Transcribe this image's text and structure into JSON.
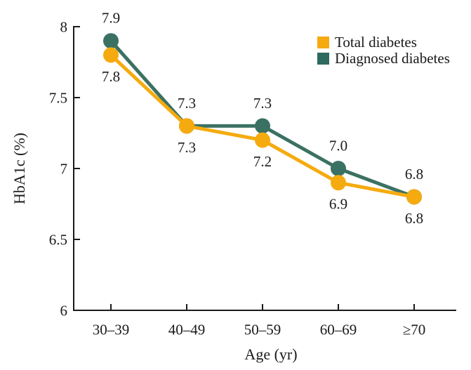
{
  "chart_data": {
    "type": "line",
    "title": "",
    "xlabel": "Age (yr)",
    "ylabel": "HbA1c (%)",
    "categories": [
      "30–39",
      "40–49",
      "50–59",
      "60–69",
      "≥70"
    ],
    "series": [
      {
        "name": "Diagnosed diabetes",
        "values": [
          7.9,
          7.3,
          7.3,
          7.0,
          6.8
        ],
        "labels": [
          "7.9",
          "7.3",
          "7.3",
          "7.0",
          "6.8"
        ],
        "color": "#3B7163",
        "label_placement": "above"
      },
      {
        "name": "Total diabetes",
        "values": [
          7.8,
          7.3,
          7.2,
          6.9,
          6.8
        ],
        "labels": [
          "7.8",
          "7.3",
          "7.2",
          "6.9",
          "6.8"
        ],
        "color": "#F5AB0F",
        "label_placement": "below"
      }
    ],
    "ylim": [
      6,
      8
    ],
    "yticks": [
      6,
      6.5,
      7,
      7.5,
      8
    ],
    "ytick_labels": [
      "6",
      "6.5",
      "7",
      "7.5",
      "8"
    ],
    "grid": false,
    "axis_color": "#1a1a1a",
    "legend": {
      "position": "top-right",
      "entries": [
        {
          "label": "Total diabetes",
          "color": "#F5AB0F"
        },
        {
          "label": "Diagnosed diabetes",
          "color": "#2E6A60"
        }
      ]
    }
  }
}
